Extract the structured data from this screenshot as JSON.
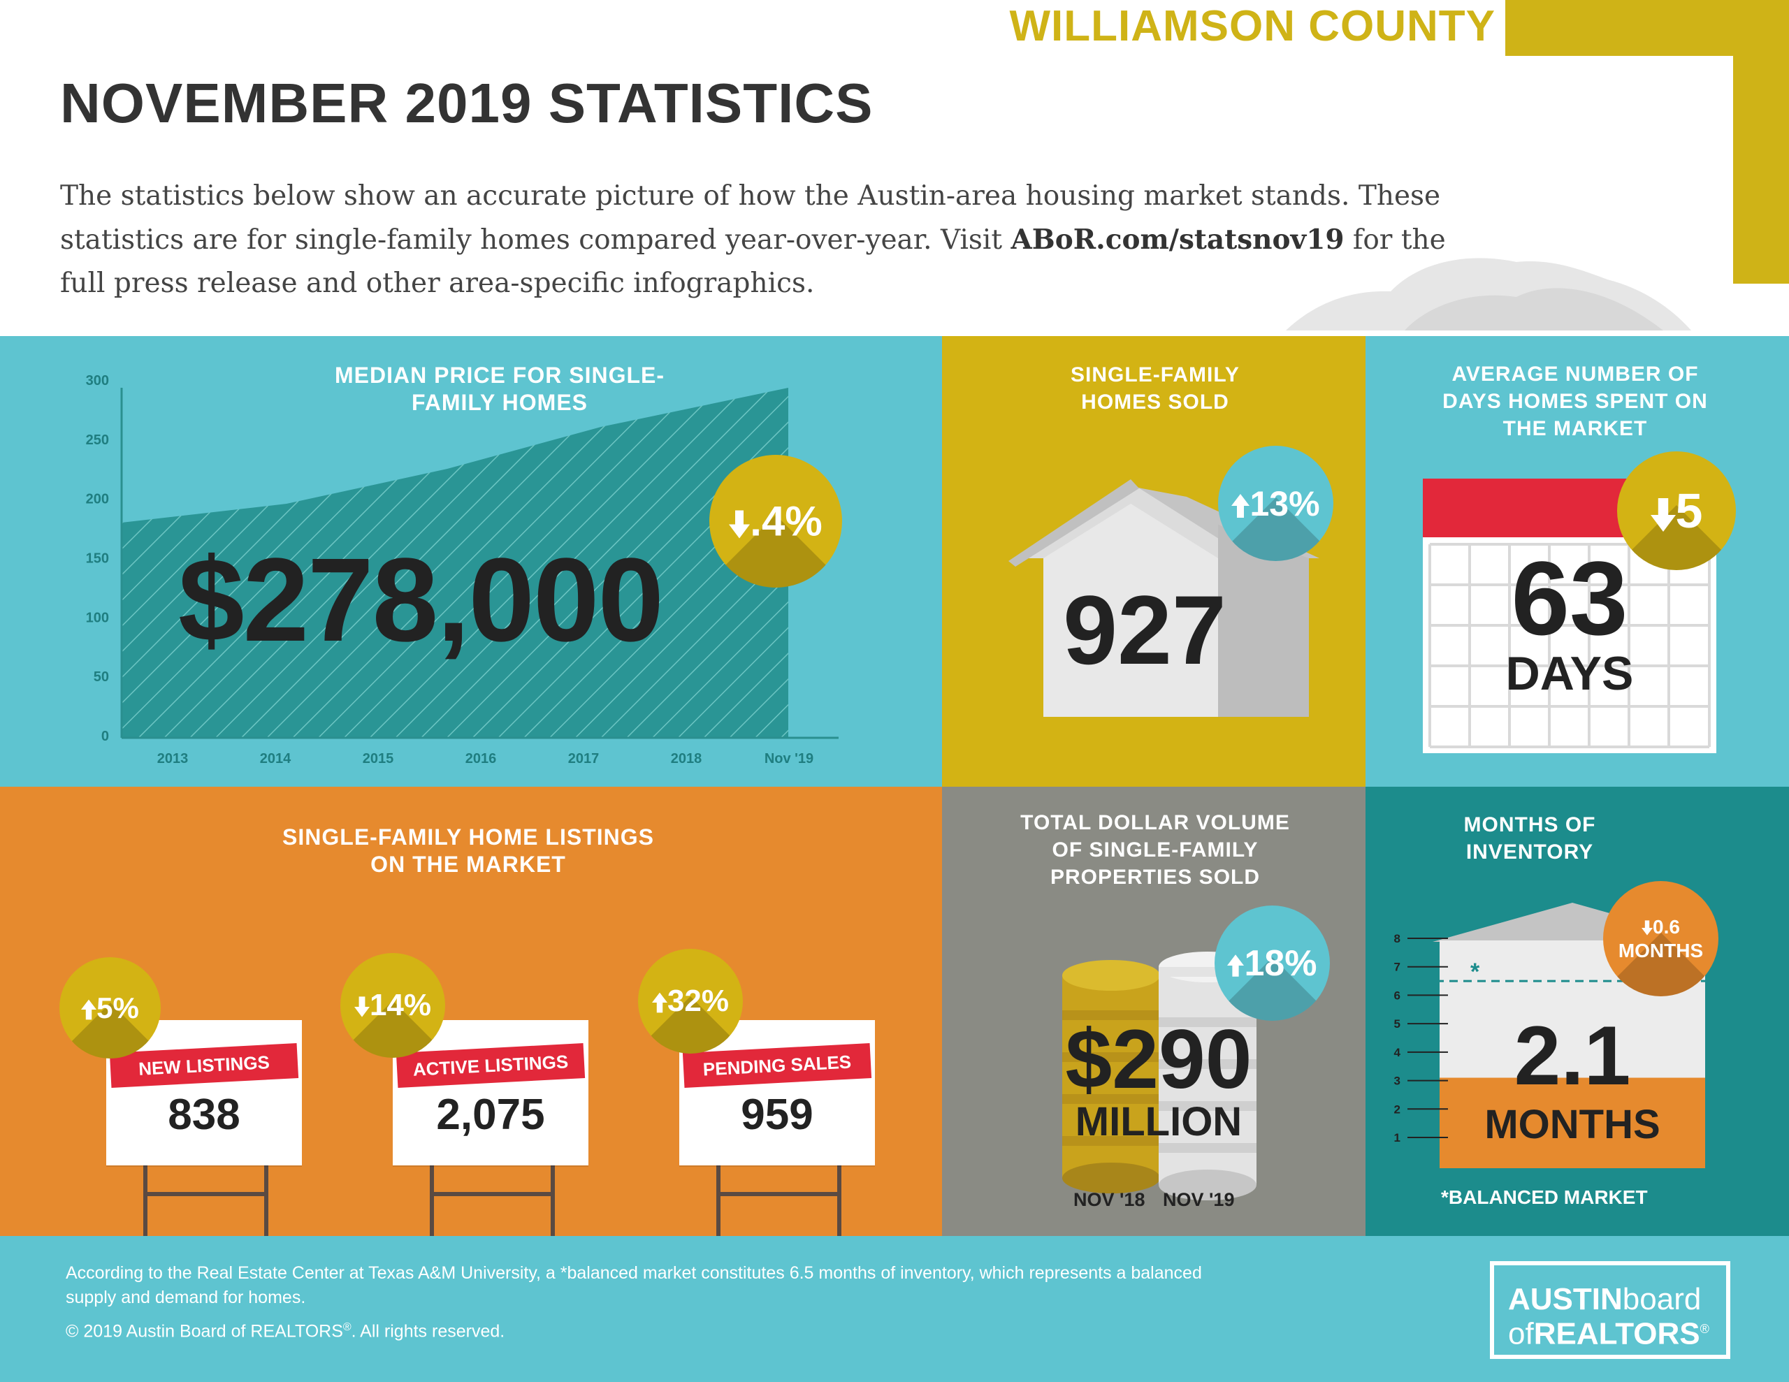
{
  "header": {
    "county": "WILLIAMSON COUNTY",
    "title": "NOVEMBER 2019 STATISTICS",
    "intro_1": "The statistics below show an accurate picture of how the Austin-area housing market stands. These statistics are for single-family homes compared year-over-year. Visit ",
    "intro_link": "ABoR.com/statsnov19",
    "intro_2": " for the full press release and other area-specific infographics."
  },
  "colors": {
    "teal_light": "#5ec4d0",
    "teal_dark": "#1c8c8c",
    "chart_fill": "#2a9595",
    "gold": "#d3b314",
    "orange": "#e68a2e",
    "gray": "#8a8b84",
    "red": "#e2283a",
    "badge_teal": "#5ec4d0",
    "badge_gold": "#d3b314",
    "badge_orange": "#e68a2e"
  },
  "median_price": {
    "title": "MEDIAN PRICE FOR SINGLE-FAMILY HOMES",
    "value": "$278,000",
    "change": ".4%",
    "direction": "down"
  },
  "chart_data": {
    "type": "area",
    "categories": [
      "2013",
      "2014",
      "2015",
      "2016",
      "2017",
      "2018",
      "Nov '19"
    ],
    "y_ticks": [
      "300",
      "250",
      "200",
      "150",
      "100",
      "50",
      "0"
    ],
    "ylim": [
      0,
      300
    ],
    "title": "MEDIAN PRICE FOR SINGLE-FAMILY HOMES",
    "grid": false
  },
  "homes_sold": {
    "title": "SINGLE-FAMILY HOMES SOLD",
    "value": "927",
    "change": "13%",
    "direction": "up"
  },
  "days_on_market": {
    "title": "AVERAGE NUMBER OF DAYS HOMES SPENT ON THE MARKET",
    "value": "63",
    "unit": "DAYS",
    "change": "5",
    "direction": "down"
  },
  "listings": {
    "title": "SINGLE-FAMILY HOME LISTINGS ON THE MARKET",
    "items": [
      {
        "label": "NEW LISTINGS",
        "value": "838",
        "change": "5%",
        "direction": "up"
      },
      {
        "label": "ACTIVE LISTINGS",
        "value": "2,075",
        "change": "14%",
        "direction": "down"
      },
      {
        "label": "PENDING SALES",
        "value": "959",
        "change": "32%",
        "direction": "up"
      }
    ]
  },
  "dollar_volume": {
    "title": "TOTAL DOLLAR VOLUME OF SINGLE-FAMILY PROPERTIES SOLD",
    "value": "$290",
    "unit": "MILLION",
    "change": "18%",
    "direction": "up",
    "label_prev": "NOV '18",
    "label_curr": "NOV '19"
  },
  "inventory": {
    "title": "MONTHS OF INVENTORY",
    "value": "2.1",
    "unit": "MONTHS",
    "change": "0.6",
    "change_unit": "MONTHS",
    "direction": "down",
    "ticks": [
      "8",
      "7",
      "6",
      "5",
      "4",
      "3",
      "2",
      "1"
    ],
    "marker": "*",
    "note": "*BALANCED MARKET",
    "level_months": 2.1,
    "balanced_months": 6.5
  },
  "footer": {
    "text": "According to the Real Estate Center at Texas A&M University, a *balanced market constitutes 6.5 months of inventory, which represents a balanced supply and demand for homes.",
    "copyright_1": "© 2019  Austin Board of REALTORS",
    "copyright_reg": "®",
    "copyright_2": ".  All rights reserved.",
    "logo_line1_a": "AUSTIN",
    "logo_line1_b": "board",
    "logo_line2_a": "of",
    "logo_line2_b": "REALTORS",
    "logo_reg": "®"
  }
}
